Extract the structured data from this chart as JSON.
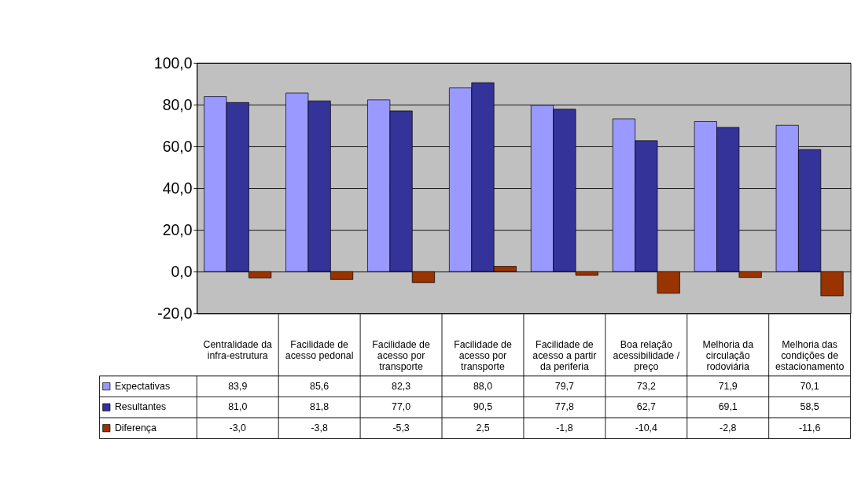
{
  "chart_data": {
    "type": "bar",
    "categories": [
      "Centralidade da infra-estrutura",
      "Facilidade de acesso pedonal",
      "Facilidade de acesso por transporte",
      "Facilidade de acesso por transporte",
      "Facilidade de acesso a partir da periferia",
      "Boa relação acessibilidade / preço",
      "Melhoria da circulação rodoviária",
      "Melhoria das condições de estacionamento"
    ],
    "series": [
      {
        "name": "Expectativas",
        "color": "#9999ff",
        "values": [
          83.9,
          85.6,
          82.3,
          88.0,
          79.7,
          73.2,
          71.9,
          70.1
        ],
        "value_labels": [
          "83,9",
          "85,6",
          "82,3",
          "88,0",
          "79,7",
          "73,2",
          "71,9",
          "70,1"
        ]
      },
      {
        "name": "Resultantes",
        "color": "#333399",
        "values": [
          81.0,
          81.8,
          77.0,
          90.5,
          77.8,
          62.7,
          69.1,
          58.5
        ],
        "value_labels": [
          "81,0",
          "81,8",
          "77,0",
          "90,5",
          "77,8",
          "62,7",
          "69,1",
          "58,5"
        ]
      },
      {
        "name": "Diferença",
        "color": "#993300",
        "values": [
          -3.0,
          -3.8,
          -5.3,
          2.5,
          -1.8,
          -10.4,
          -2.8,
          -11.6
        ],
        "value_labels": [
          "-3,0",
          "-3,8",
          "-5,3",
          "2,5",
          "-1,8",
          "-10,4",
          "-2,8",
          "-11,6"
        ]
      }
    ],
    "ylim": [
      -20,
      100
    ],
    "yticks": [
      {
        "value": -20,
        "label": "-20,0"
      },
      {
        "value": 0,
        "label": "0,0"
      },
      {
        "value": 20,
        "label": "20,0"
      },
      {
        "value": 40,
        "label": "40,0"
      },
      {
        "value": 60,
        "label": "60,0"
      },
      {
        "value": 80,
        "label": "80,0"
      },
      {
        "value": 100,
        "label": "100,0"
      }
    ],
    "grid": "y",
    "legend": "bottom left"
  }
}
